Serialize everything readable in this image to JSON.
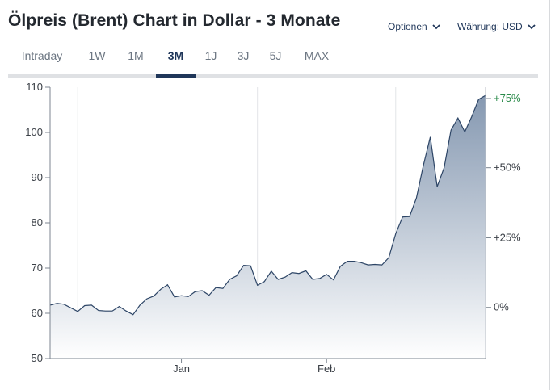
{
  "title": "Ölpreis (Brent) Chart in Dollar - 3 Monate",
  "options_label": "Optionen",
  "currency_label": "Währung: USD",
  "tabs": [
    {
      "label": "Intraday",
      "active": false
    },
    {
      "label": "1W",
      "active": false
    },
    {
      "label": "1M",
      "active": false
    },
    {
      "label": "3M",
      "active": true
    },
    {
      "label": "1J",
      "active": false
    },
    {
      "label": "3J",
      "active": false
    },
    {
      "label": "5J",
      "active": false
    },
    {
      "label": "MAX",
      "active": false
    }
  ],
  "colors": {
    "accent": "#1f3659",
    "line": "#2d4566",
    "area_top": "#7f93ad",
    "area_bottom": "#ffffff",
    "positive": "#2a8a4a",
    "grid": "#e3e5e8"
  },
  "chart_data": {
    "type": "area",
    "ylim": [
      50,
      110
    ],
    "yticks": [
      50,
      60,
      70,
      80,
      90,
      100,
      110
    ],
    "ytick_labels": [
      "50",
      "60",
      "70",
      "80",
      "90",
      "100",
      "110"
    ],
    "right_axis_ticks": [
      {
        "label": "+75%",
        "value": 107.5,
        "positive": true
      },
      {
        "label": "+50%",
        "value": 92.2,
        "positive": false
      },
      {
        "label": "+25%",
        "value": 76.7,
        "positive": false
      },
      {
        "label": "0%",
        "value": 61.3,
        "positive": false
      }
    ],
    "xtick_labels": [
      {
        "label": "Jan",
        "index": 19
      },
      {
        "label": "Feb",
        "index": 40
      }
    ],
    "values": [
      61.8,
      62.2,
      62.0,
      61.2,
      60.4,
      61.7,
      61.8,
      60.6,
      60.5,
      60.5,
      61.5,
      60.5,
      59.7,
      61.8,
      63.2,
      63.8,
      65.3,
      66.3,
      63.6,
      63.9,
      63.7,
      64.8,
      65.0,
      64.0,
      65.7,
      65.5,
      67.5,
      68.3,
      70.6,
      70.5,
      66.2,
      67.0,
      69.3,
      67.5,
      68.0,
      69.0,
      68.8,
      69.4,
      67.5,
      67.7,
      68.6,
      67.4,
      70.4,
      71.5,
      71.5,
      71.2,
      70.7,
      70.8,
      70.7,
      72.3,
      77.6,
      81.3,
      81.4,
      85.5,
      92.7,
      99.0,
      88.0,
      92.2,
      100.5,
      103.2,
      100.1,
      103.5,
      107.3,
      108.2
    ]
  }
}
